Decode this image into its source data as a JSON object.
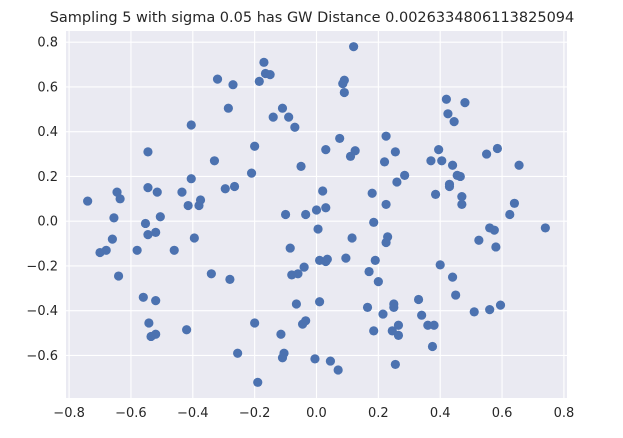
{
  "chart_data": {
    "type": "scatter",
    "title": "Sampling 5 with sigma 0.05 has GW Distance 0.0026334806113825094",
    "xlabel": "",
    "ylabel": "",
    "xlim": [
      -0.81,
      0.81
    ],
    "ylim": [
      -0.79,
      0.85
    ],
    "xticks": [
      -0.8,
      -0.6,
      -0.4,
      -0.2,
      0.0,
      0.2,
      0.4,
      0.6,
      0.8
    ],
    "yticks": [
      -0.6,
      -0.4,
      -0.2,
      0.0,
      0.2,
      0.4,
      0.6,
      0.8
    ],
    "xtick_labels": [
      "−0.8",
      "−0.6",
      "−0.4",
      "−0.2",
      "0.0",
      "0.2",
      "0.4",
      "0.6",
      "0.8"
    ],
    "ytick_labels": [
      "−0.6",
      "−0.4",
      "−0.2",
      "0.0",
      "0.2",
      "0.4",
      "0.6",
      "0.8"
    ],
    "grid": true,
    "point_color": "#4c72b0",
    "background_color": "#eaeaf2",
    "points": [
      [
        -0.74,
        0.09
      ],
      [
        -0.7,
        -0.14
      ],
      [
        -0.68,
        -0.13
      ],
      [
        -0.66,
        -0.08
      ],
      [
        -0.655,
        0.015
      ],
      [
        -0.645,
        0.13
      ],
      [
        -0.635,
        0.1
      ],
      [
        -0.64,
        -0.245
      ],
      [
        -0.58,
        -0.13
      ],
      [
        -0.56,
        -0.34
      ],
      [
        -0.553,
        -0.01
      ],
      [
        -0.545,
        0.15
      ],
      [
        -0.545,
        0.31
      ],
      [
        -0.545,
        -0.06
      ],
      [
        -0.542,
        -0.455
      ],
      [
        -0.535,
        -0.515
      ],
      [
        -0.52,
        -0.355
      ],
      [
        -0.52,
        -0.05
      ],
      [
        -0.52,
        -0.505
      ],
      [
        -0.515,
        0.13
      ],
      [
        -0.505,
        0.02
      ],
      [
        -0.46,
        -0.13
      ],
      [
        -0.435,
        0.13
      ],
      [
        -0.42,
        -0.485
      ],
      [
        -0.415,
        0.07
      ],
      [
        -0.405,
        0.19
      ],
      [
        -0.405,
        0.43
      ],
      [
        -0.395,
        -0.075
      ],
      [
        -0.38,
        0.07
      ],
      [
        -0.375,
        0.095
      ],
      [
        -0.34,
        -0.235
      ],
      [
        -0.33,
        0.27
      ],
      [
        -0.32,
        0.635
      ],
      [
        -0.295,
        0.145
      ],
      [
        -0.285,
        0.505
      ],
      [
        -0.28,
        -0.26
      ],
      [
        -0.27,
        0.61
      ],
      [
        -0.265,
        0.155
      ],
      [
        -0.255,
        -0.59
      ],
      [
        -0.21,
        0.215
      ],
      [
        -0.2,
        0.335
      ],
      [
        -0.2,
        -0.455
      ],
      [
        -0.19,
        -0.72
      ],
      [
        -0.185,
        0.625
      ],
      [
        -0.17,
        0.71
      ],
      [
        -0.165,
        0.66
      ],
      [
        -0.15,
        0.655
      ],
      [
        -0.14,
        0.465
      ],
      [
        -0.115,
        -0.505
      ],
      [
        -0.11,
        0.505
      ],
      [
        -0.11,
        -0.61
      ],
      [
        -0.105,
        -0.59
      ],
      [
        -0.1,
        0.03
      ],
      [
        -0.09,
        0.465
      ],
      [
        -0.085,
        -0.12
      ],
      [
        -0.08,
        -0.24
      ],
      [
        -0.07,
        0.42
      ],
      [
        -0.065,
        -0.37
      ],
      [
        -0.06,
        -0.235
      ],
      [
        -0.05,
        0.245
      ],
      [
        -0.045,
        -0.46
      ],
      [
        -0.04,
        -0.205
      ],
      [
        -0.035,
        -0.445
      ],
      [
        -0.035,
        0.03
      ],
      [
        -0.005,
        -0.615
      ],
      [
        0.0,
        0.05
      ],
      [
        0.005,
        -0.035
      ],
      [
        0.01,
        -0.36
      ],
      [
        0.01,
        -0.175
      ],
      [
        0.02,
        0.135
      ],
      [
        0.03,
        0.06
      ],
      [
        0.03,
        0.32
      ],
      [
        0.03,
        -0.18
      ],
      [
        0.035,
        -0.17
      ],
      [
        0.045,
        -0.625
      ],
      [
        0.07,
        -0.665
      ],
      [
        0.075,
        0.37
      ],
      [
        0.085,
        0.615
      ],
      [
        0.09,
        0.575
      ],
      [
        0.09,
        0.63
      ],
      [
        0.095,
        -0.165
      ],
      [
        0.11,
        0.29
      ],
      [
        0.115,
        -0.075
      ],
      [
        0.12,
        0.78
      ],
      [
        0.125,
        0.315
      ],
      [
        0.165,
        -0.385
      ],
      [
        0.17,
        -0.225
      ],
      [
        0.18,
        0.125
      ],
      [
        0.185,
        -0.005
      ],
      [
        0.185,
        -0.49
      ],
      [
        0.19,
        -0.175
      ],
      [
        0.2,
        -0.27
      ],
      [
        0.215,
        -0.415
      ],
      [
        0.22,
        0.265
      ],
      [
        0.225,
        0.38
      ],
      [
        0.225,
        -0.095
      ],
      [
        0.225,
        0.075
      ],
      [
        0.23,
        -0.07
      ],
      [
        0.245,
        -0.49
      ],
      [
        0.25,
        -0.385
      ],
      [
        0.25,
        -0.37
      ],
      [
        0.255,
        0.31
      ],
      [
        0.255,
        -0.64
      ],
      [
        0.26,
        0.175
      ],
      [
        0.265,
        -0.465
      ],
      [
        0.265,
        -0.51
      ],
      [
        0.285,
        0.205
      ],
      [
        0.33,
        -0.35
      ],
      [
        0.34,
        -0.42
      ],
      [
        0.36,
        -0.465
      ],
      [
        0.37,
        0.27
      ],
      [
        0.375,
        -0.56
      ],
      [
        0.38,
        -0.465
      ],
      [
        0.385,
        0.12
      ],
      [
        0.395,
        0.32
      ],
      [
        0.4,
        -0.195
      ],
      [
        0.405,
        0.27
      ],
      [
        0.42,
        0.545
      ],
      [
        0.425,
        0.48
      ],
      [
        0.43,
        0.165
      ],
      [
        0.43,
        0.155
      ],
      [
        0.44,
        -0.25
      ],
      [
        0.44,
        0.25
      ],
      [
        0.445,
        0.445
      ],
      [
        0.45,
        -0.33
      ],
      [
        0.455,
        0.205
      ],
      [
        0.465,
        0.2
      ],
      [
        0.47,
        0.11
      ],
      [
        0.47,
        0.075
      ],
      [
        0.48,
        0.53
      ],
      [
        0.51,
        -0.405
      ],
      [
        0.525,
        -0.085
      ],
      [
        0.55,
        0.3
      ],
      [
        0.56,
        -0.03
      ],
      [
        0.56,
        -0.395
      ],
      [
        0.575,
        -0.04
      ],
      [
        0.58,
        -0.115
      ],
      [
        0.585,
        0.325
      ],
      [
        0.595,
        -0.375
      ],
      [
        0.625,
        0.03
      ],
      [
        0.64,
        0.08
      ],
      [
        0.655,
        0.25
      ],
      [
        0.74,
        -0.03
      ]
    ]
  }
}
